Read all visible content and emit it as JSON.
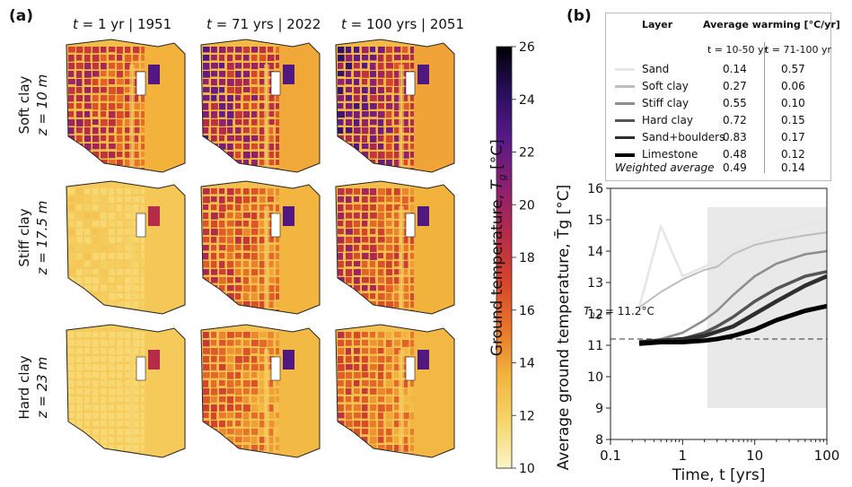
{
  "panel_a": {
    "label": "(a)",
    "column_headers": [
      {
        "t_label": "t",
        "rest": " = 1 yr | 1951"
      },
      {
        "t_label": "t",
        "rest": " = 71 yrs | 2022"
      },
      {
        "t_label": "t",
        "rest": " = 100 yrs | 2051"
      }
    ],
    "row_labels": [
      {
        "layer": "Soft clay",
        "depth": "z = 10 m"
      },
      {
        "layer": "Stiff clay",
        "depth": "z = 17.5 m"
      },
      {
        "layer": "Hard clay",
        "depth": "z = 23 m"
      }
    ],
    "colorbar": {
      "title": "Ground temperature, ",
      "symbol": "T",
      "subscript": "g",
      "unit": " [°C]",
      "ticks": [
        "10",
        "12",
        "14",
        "16",
        "18",
        "20",
        "22",
        "24",
        "26"
      ],
      "min": 10,
      "max": 26,
      "colors": [
        "#fcf5c8",
        "#f6d56a",
        "#f2b33c",
        "#e8742a",
        "#d6452a",
        "#b42b4a",
        "#8c1f70",
        "#5a1a88",
        "#2a0f5e",
        "#000004"
      ]
    },
    "map_intensity": [
      [
        0.6,
        0.72,
        0.78
      ],
      [
        0.12,
        0.52,
        0.58
      ],
      [
        0.05,
        0.44,
        0.46
      ]
    ]
  },
  "panel_b": {
    "label": "(b)",
    "legend_table": {
      "col_layer": "Layer",
      "col_warming": "Average warming [°C/yr]",
      "sub_1": "t = 10-50 yr",
      "sub_2": "t = 71-100 yr",
      "rows": [
        {
          "name": "Sand",
          "a": "0.14",
          "b": "0.57",
          "color": "#e6e6e6"
        },
        {
          "name": "Soft clay",
          "a": "0.27",
          "b": "0.06",
          "color": "#bdbdbd"
        },
        {
          "name": "Stiff clay",
          "a": "0.55",
          "b": "0.10",
          "color": "#8e8e8e"
        },
        {
          "name": "Hard clay",
          "a": "0.72",
          "b": "0.15",
          "color": "#555555"
        },
        {
          "name": "Sand+boulders",
          "a": "0.83",
          "b": "0.17",
          "color": "#2e2e2e"
        },
        {
          "name": "Limestone",
          "a": "0.48",
          "b": "0.12",
          "color": "#000000"
        }
      ],
      "weighted": {
        "name": "Weighted average",
        "a": "0.49",
        "b": "0.14"
      }
    },
    "annotation": {
      "symbol": "T",
      "subscript": "0,g",
      "value": " = 11.2°C"
    },
    "chart_data": {
      "type": "line",
      "title": "",
      "xlabel": "Time, t [yrs]",
      "ylabel": "Average ground temperature, T̄g [°C]",
      "xscale": "log",
      "xlim": [
        0.1,
        100
      ],
      "ylim": [
        8,
        16
      ],
      "xticks": [
        "0.1",
        "1",
        "10",
        "100"
      ],
      "yticks": [
        "8",
        "9",
        "10",
        "11",
        "12",
        "13",
        "14",
        "15",
        "16"
      ],
      "reference_line": {
        "y": 11.2,
        "style": "dashed"
      },
      "series": [
        {
          "name": "Sand",
          "color": "#e6e6e6",
          "x": [
            0.25,
            0.5,
            1,
            2,
            5,
            10,
            20,
            50,
            100
          ],
          "y": [
            12.2,
            14.8,
            13.2,
            13.5,
            14.0,
            14.3,
            14.6,
            14.8,
            15.0
          ],
          "band": [
            9.0,
            15.4
          ]
        },
        {
          "name": "Soft clay",
          "color": "#bdbdbd",
          "x": [
            0.25,
            0.5,
            1,
            2,
            3,
            5,
            10,
            20,
            50,
            100
          ],
          "y": [
            12.2,
            12.7,
            13.1,
            13.4,
            13.5,
            13.9,
            14.2,
            14.35,
            14.5,
            14.6
          ]
        },
        {
          "name": "Stiff clay",
          "color": "#8e8e8e",
          "x": [
            0.25,
            0.5,
            1,
            2,
            3,
            5,
            10,
            20,
            50,
            100
          ],
          "y": [
            11.1,
            11.2,
            11.4,
            11.8,
            12.1,
            12.6,
            13.2,
            13.6,
            13.9,
            14.0
          ]
        },
        {
          "name": "Hard clay",
          "color": "#555555",
          "x": [
            0.25,
            0.5,
            1,
            2,
            3,
            5,
            10,
            20,
            50,
            100
          ],
          "y": [
            11.1,
            11.15,
            11.2,
            11.4,
            11.6,
            11.9,
            12.4,
            12.8,
            13.2,
            13.35
          ]
        },
        {
          "name": "Sand+boulders",
          "color": "#2e2e2e",
          "x": [
            0.25,
            0.5,
            1,
            2,
            5,
            10,
            20,
            50,
            100
          ],
          "y": [
            11.1,
            11.15,
            11.2,
            11.3,
            11.6,
            12.0,
            12.4,
            12.9,
            13.2
          ]
        },
        {
          "name": "Limestone",
          "color": "#000000",
          "x": [
            0.25,
            0.5,
            1,
            2,
            3,
            5,
            10,
            20,
            50,
            100
          ],
          "y": [
            11.05,
            11.1,
            11.1,
            11.15,
            11.2,
            11.3,
            11.5,
            11.8,
            12.1,
            12.25
          ]
        }
      ]
    }
  }
}
